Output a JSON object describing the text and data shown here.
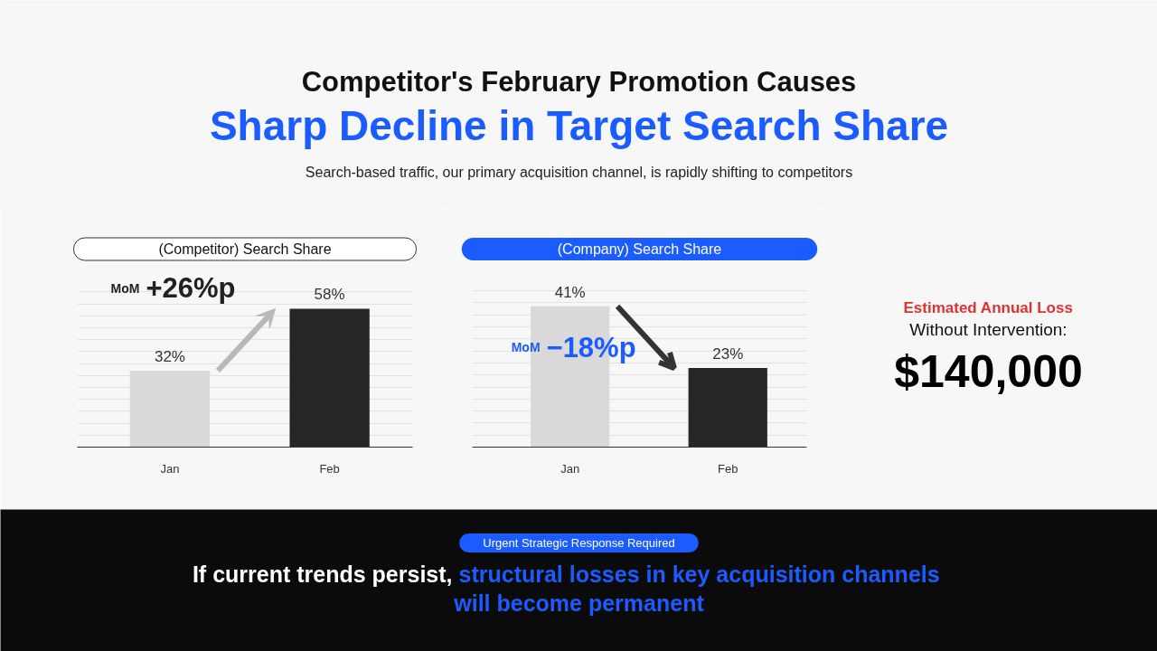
{
  "chart_data": [
    {
      "type": "other",
      "title": "Competitor's February Promotion Causes",
      "subtitle": "Sharp Decline in Target Search Share",
      "annotations": [
        "Search-based traffic, our primary acquisition channel, is rapidly shifting to competitors"
      ]
    },
    {
      "type": "bar",
      "title": "(Competitor) Search Share",
      "categories": [
        "Jan",
        "Feb"
      ],
      "values": [
        32,
        58
      ],
      "colors": [
        "#d9d9d9",
        "#262626"
      ],
      "value_labels": [
        "32%",
        "58%"
      ],
      "annotations": [
        "MoM +26%p"
      ],
      "ylim": [
        0,
        72
      ],
      "yticks": [
        {
          "value": 5,
          "label": null
        },
        {
          "value": 10,
          "label": null
        },
        {
          "value": 15,
          "label": null
        },
        {
          "value": 20,
          "label": null
        },
        {
          "value": 25,
          "label": null
        },
        {
          "value": 30,
          "label": null
        },
        {
          "value": 35,
          "label": null
        },
        {
          "value": 40,
          "label": null
        },
        {
          "value": 45,
          "label": null
        },
        {
          "value": 50,
          "label": null
        },
        {
          "value": 55,
          "label": null
        },
        {
          "value": 60,
          "label": null
        },
        {
          "value": 65,
          "label": null
        }
      ],
      "grid": "y",
      "tick_labels": "x"
    },
    {
      "type": "bar",
      "title": "(Company) Search Share",
      "categories": [
        "Jan",
        "Feb"
      ],
      "values": [
        41,
        23
      ],
      "colors": [
        "#d9d9d9",
        "#262626"
      ],
      "value_labels": [
        "41%",
        "23%"
      ],
      "annotations": [
        "MoM −18%p"
      ],
      "ylim": [
        0,
        50
      ],
      "yticks": [
        {
          "value": 3.5,
          "label": null
        },
        {
          "value": 7,
          "label": null
        },
        {
          "value": 10.5,
          "label": null
        },
        {
          "value": 14,
          "label": null
        },
        {
          "value": 17.5,
          "label": null
        },
        {
          "value": 21,
          "label": null
        },
        {
          "value": 24.5,
          "label": null
        },
        {
          "value": 28,
          "label": null
        },
        {
          "value": 31.5,
          "label": null
        },
        {
          "value": 35,
          "label": null
        },
        {
          "value": 38.5,
          "label": null
        },
        {
          "value": 42,
          "label": null
        },
        {
          "value": 45.5,
          "label": null
        }
      ],
      "grid": "y",
      "tick_labels": "x"
    },
    {
      "type": "other",
      "title": "Estimated Annual Loss",
      "subtitle": "Without Intervention:",
      "annotations": [
        "$140,000"
      ]
    },
    {
      "type": "other",
      "title": "Urgent Strategic Response Required",
      "annotations": [
        "If current trends persist,",
        "structural losses in key acquisition channels will become permanent"
      ]
    }
  ]
}
